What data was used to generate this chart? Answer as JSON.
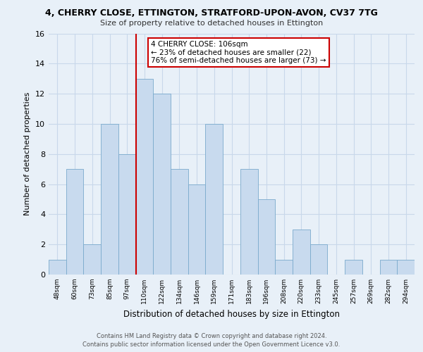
{
  "title": "4, CHERRY CLOSE, ETTINGTON, STRATFORD-UPON-AVON, CV37 7TG",
  "subtitle": "Size of property relative to detached houses in Ettington",
  "xlabel": "Distribution of detached houses by size in Ettington",
  "ylabel": "Number of detached properties",
  "categories": [
    "48sqm",
    "60sqm",
    "73sqm",
    "85sqm",
    "97sqm",
    "110sqm",
    "122sqm",
    "134sqm",
    "146sqm",
    "159sqm",
    "171sqm",
    "183sqm",
    "196sqm",
    "208sqm",
    "220sqm",
    "233sqm",
    "245sqm",
    "257sqm",
    "269sqm",
    "282sqm",
    "294sqm"
  ],
  "values": [
    1,
    7,
    2,
    10,
    8,
    13,
    12,
    7,
    6,
    10,
    0,
    7,
    5,
    1,
    3,
    2,
    0,
    1,
    0,
    1,
    1
  ],
  "bar_color": "#c8daee",
  "bar_edge_color": "#7aaacc",
  "red_line_x": 4.5,
  "annotation_text": "4 CHERRY CLOSE: 106sqm\n← 23% of detached houses are smaller (22)\n76% of semi-detached houses are larger (73) →",
  "annotation_box_color": "#ffffff",
  "annotation_box_edge_color": "#cc0000",
  "ylim": [
    0,
    16
  ],
  "yticks": [
    0,
    2,
    4,
    6,
    8,
    10,
    12,
    14,
    16
  ],
  "grid_color": "#c8d8ea",
  "background_color": "#e8f0f8",
  "footer_line1": "Contains HM Land Registry data © Crown copyright and database right 2024.",
  "footer_line2": "Contains public sector information licensed under the Open Government Licence v3.0."
}
